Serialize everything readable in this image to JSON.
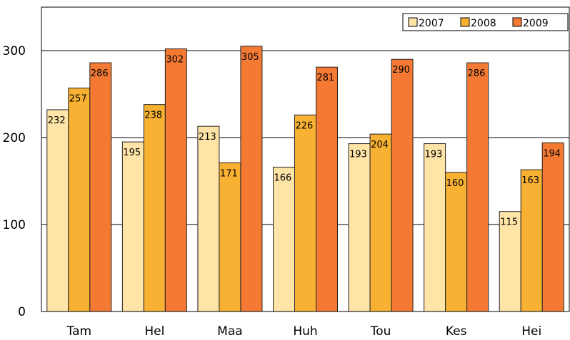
{
  "chart_data": {
    "type": "bar",
    "categories": [
      "Tam",
      "Hel",
      "Maa",
      "Huh",
      "Tou",
      "Kes",
      "Hei"
    ],
    "series": [
      {
        "name": "2007",
        "values": [
          232,
          195,
          213,
          166,
          193,
          193,
          115
        ],
        "color": "#FFE4A8"
      },
      {
        "name": "2008",
        "values": [
          257,
          238,
          171,
          226,
          204,
          160,
          163
        ],
        "color": "#F8B133"
      },
      {
        "name": "2009",
        "values": [
          286,
          302,
          305,
          281,
          290,
          286,
          194
        ],
        "color": "#F47A34"
      }
    ],
    "title": "",
    "xlabel": "",
    "ylabel": "",
    "ylim": [
      0,
      350
    ],
    "yticks": [
      0,
      100,
      200,
      300
    ],
    "grid": true,
    "legend": "top-right"
  }
}
